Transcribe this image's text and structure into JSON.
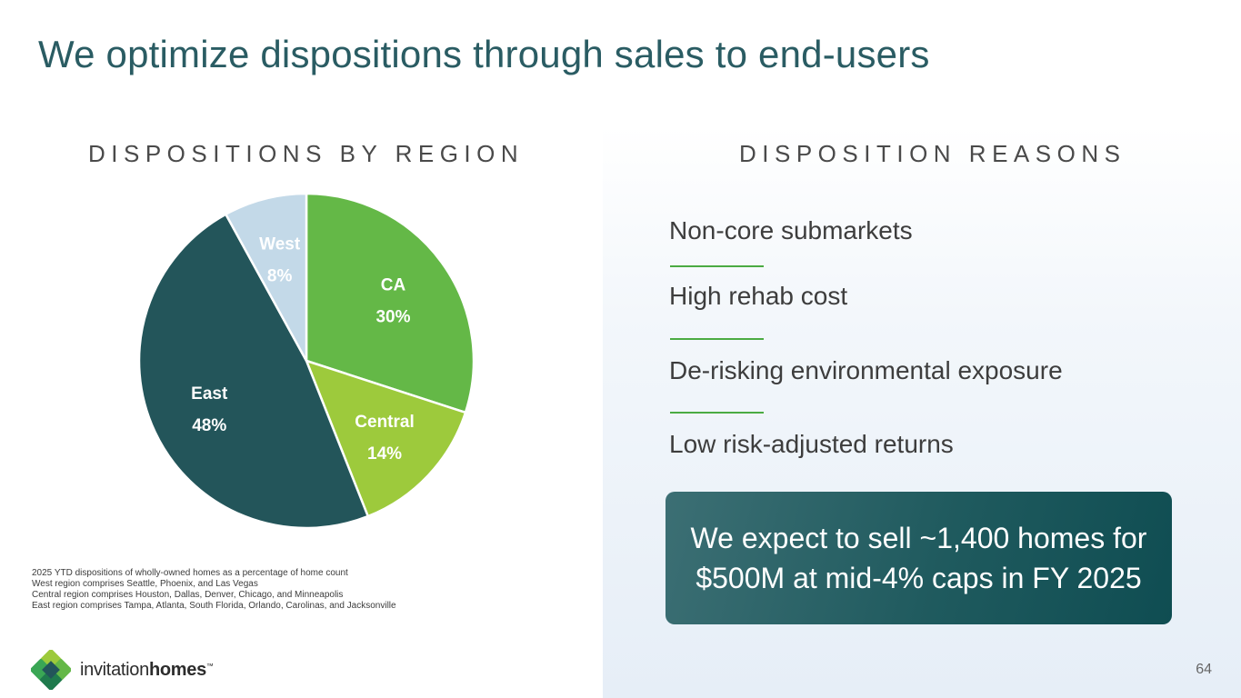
{
  "title": "We optimize dispositions through sales to end-users",
  "left_section_title": "DISPOSITIONS BY REGION",
  "right_section_title": "DISPOSITION REASONS",
  "chart_data": {
    "type": "pie",
    "title": "DISPOSITIONS BY REGION",
    "unit": "%",
    "slices": [
      {
        "label": "CA",
        "value": 30,
        "display": "30%",
        "color": "#64b847",
        "label_color": "#ffffff"
      },
      {
        "label": "Central",
        "value": 14,
        "display": "14%",
        "color": "#9dca3c",
        "label_color": "#ffffff"
      },
      {
        "label": "East",
        "value": 48,
        "display": "48%",
        "color": "#23555a",
        "label_color": "#ffffff"
      },
      {
        "label": "West",
        "value": 8,
        "display": "8%",
        "color": "#c3d9e8",
        "label_color": "#ffffff"
      }
    ]
  },
  "reasons": [
    "Non-core submarkets",
    "High rehab cost",
    "De-risking environmental exposure",
    "Low risk-adjusted returns"
  ],
  "callout": {
    "line1": "We expect to sell ~1,400 homes for",
    "line2": "$500M at mid-4% caps in FY 2025"
  },
  "footnotes": [
    "2025 YTD dispositions of wholly-owned homes as a percentage of home count",
    "West region comprises Seattle, Phoenix, and Las Vegas",
    "Central region comprises Houston, Dallas, Denver, Chicago, and Minneapolis",
    "East region comprises Tampa, Atlanta, South Florida, Orlando, Carolinas, and Jacksonville"
  ],
  "brand": {
    "part1": "invitation",
    "part2": "homes",
    "mark": "™"
  },
  "page_number": "64",
  "colors": {
    "title": "#2a5c63",
    "accent_green": "#4bab42",
    "callout": "#1f5a5e"
  }
}
